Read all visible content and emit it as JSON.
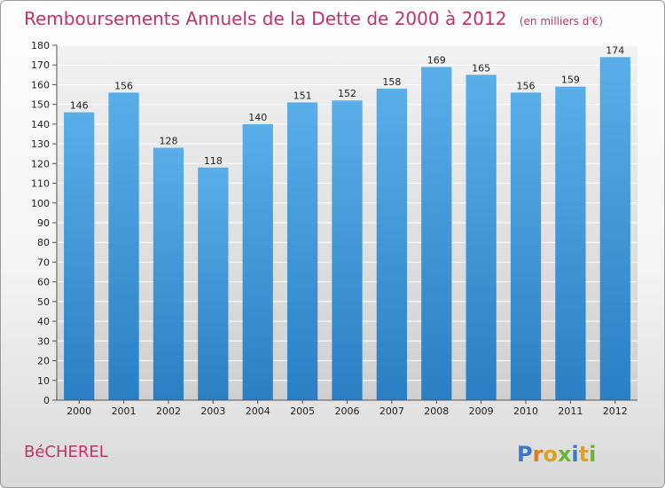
{
  "chart_data": {
    "type": "bar",
    "title": "Remboursements Annuels de la Dette de 2000 à 2012",
    "unit_note": "(en milliers d'€)",
    "categories": [
      "2000",
      "2001",
      "2002",
      "2003",
      "2004",
      "2005",
      "2006",
      "2007",
      "2008",
      "2009",
      "2010",
      "2011",
      "2012"
    ],
    "values": [
      146,
      156,
      128,
      118,
      140,
      151,
      152,
      158,
      169,
      165,
      156,
      159,
      174
    ],
    "ylim": [
      0,
      180
    ],
    "ytick_step": 10,
    "grid": true,
    "bar_color_top": "#5aaee8",
    "bar_color_bottom": "#2a7fc4"
  },
  "commune": "BéCHEREL",
  "brand": {
    "letters": [
      "P",
      "r",
      "o",
      "x",
      "i",
      "t",
      "i"
    ],
    "colors": [
      "#3b78c9",
      "#e07b1e",
      "#e0a11e",
      "#6bb631",
      "#3b78c9",
      "#e0a11e",
      "#6bb631"
    ]
  }
}
